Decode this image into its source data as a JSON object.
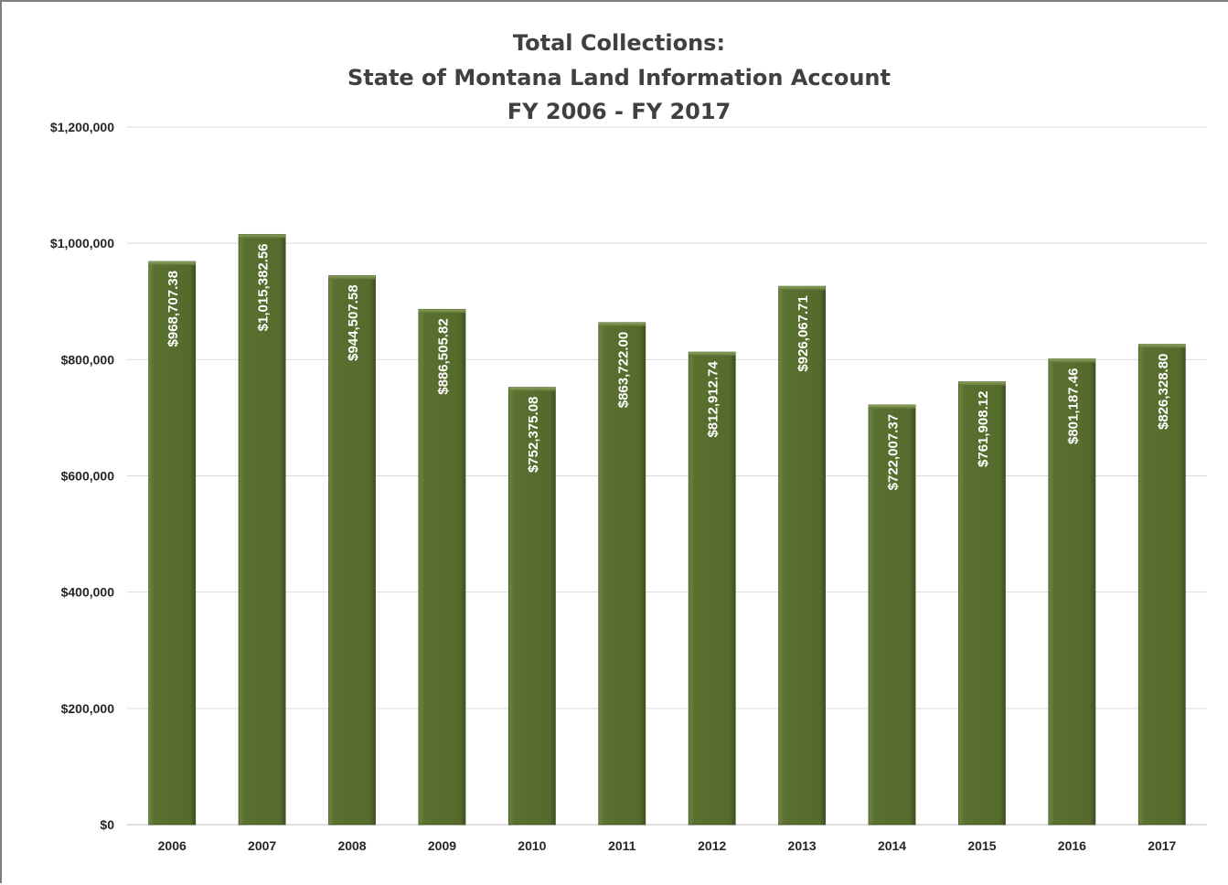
{
  "chart_data": {
    "type": "bar",
    "title": [
      "Total Collections:",
      "State of Montana Land Information Account",
      "FY 2006 - FY 2017"
    ],
    "xlabel": "",
    "ylabel": "",
    "categories": [
      "2006",
      "2007",
      "2008",
      "2009",
      "2010",
      "2011",
      "2012",
      "2013",
      "2014",
      "2015",
      "2016",
      "2017"
    ],
    "values": [
      968707.38,
      1015382.56,
      944507.58,
      886505.82,
      752375.08,
      863722.0,
      812912.74,
      926067.71,
      722007.37,
      761908.12,
      801187.46,
      826328.8
    ],
    "data_labels": [
      "$968,707.38",
      "$1,015,382.56",
      "$944,507.58",
      "$886,505.82",
      "$752,375.08",
      "$863,722.00",
      "$812,912.74",
      "$926,067.71",
      "$722,007.37",
      "$761,908.12",
      "$801,187.46",
      "$826,328.80"
    ],
    "ylim": [
      0,
      1200000
    ],
    "yticks": [
      0,
      200000,
      400000,
      600000,
      800000,
      1000000,
      1200000
    ],
    "ytick_labels": [
      "$0",
      "$200,000",
      "$400,000",
      "$600,000",
      "$800,000",
      "$1,000,000",
      "$1,200,000"
    ],
    "grid": true,
    "legend": "none",
    "colors": {
      "bar": "#566b2e",
      "bar_edge": "#3e4f1f",
      "grid": "#d9d9d9",
      "text": "#262626",
      "title": "#404040",
      "label": "#ffffff"
    }
  }
}
